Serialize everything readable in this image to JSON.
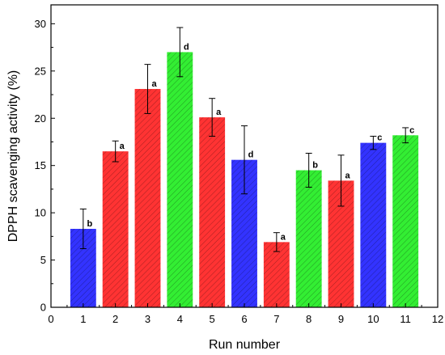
{
  "chart_data": {
    "type": "bar",
    "xlabel": "Run number",
    "ylabel": "DPPH scavenging activity (%)",
    "xlim": [
      0,
      12
    ],
    "ylim": [
      0,
      32
    ],
    "x_ticks": [
      0,
      1,
      2,
      3,
      4,
      5,
      6,
      7,
      8,
      9,
      10,
      11,
      12
    ],
    "y_ticks": [
      0,
      5,
      10,
      15,
      20,
      25,
      30
    ],
    "colors": {
      "blue": "#3333ff",
      "red": "#ff3333",
      "green": "#33ee33"
    },
    "bars": [
      {
        "x": 1,
        "value": 8.3,
        "error": 2.1,
        "letter": "b",
        "color": "blue"
      },
      {
        "x": 2,
        "value": 16.5,
        "error": 1.1,
        "letter": "a",
        "color": "red"
      },
      {
        "x": 3,
        "value": 23.1,
        "error": 2.6,
        "letter": "a",
        "color": "red"
      },
      {
        "x": 4,
        "value": 27.0,
        "error": 2.6,
        "letter": "d",
        "color": "green"
      },
      {
        "x": 5,
        "value": 20.1,
        "error": 2.0,
        "letter": "a",
        "color": "red"
      },
      {
        "x": 6,
        "value": 15.6,
        "error": 3.6,
        "letter": "d",
        "color": "blue"
      },
      {
        "x": 7,
        "value": 6.9,
        "error": 1.0,
        "letter": "a",
        "color": "red"
      },
      {
        "x": 8,
        "value": 14.5,
        "error": 1.8,
        "letter": "b",
        "color": "green"
      },
      {
        "x": 9,
        "value": 13.4,
        "error": 2.7,
        "letter": "a",
        "color": "red"
      },
      {
        "x": 10,
        "value": 17.4,
        "error": 0.7,
        "letter": "c",
        "color": "blue"
      },
      {
        "x": 11,
        "value": 18.2,
        "error": 0.8,
        "letter": "c",
        "color": "green"
      }
    ]
  }
}
